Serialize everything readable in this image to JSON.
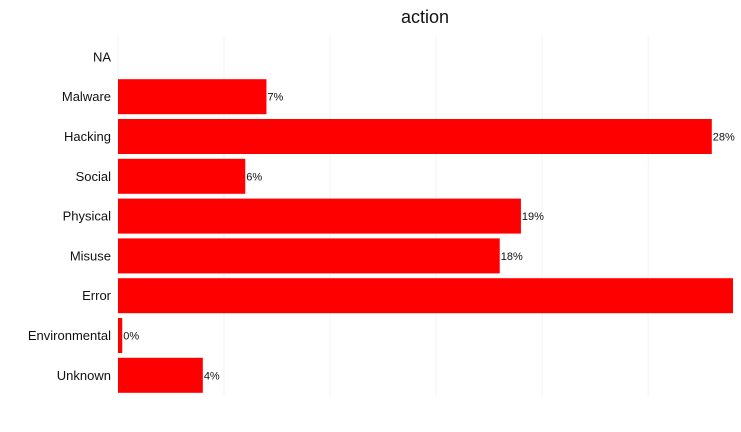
{
  "chart_data": {
    "type": "bar",
    "orientation": "horizontal",
    "title": "action",
    "xlabel": "",
    "ylabel": "",
    "categories": [
      "NA",
      "Malware",
      "Hacking",
      "Social",
      "Physical",
      "Misuse",
      "Error",
      "Environmental",
      "Unknown"
    ],
    "values": [
      null,
      7,
      28,
      6,
      19,
      18,
      29,
      0.2,
      4
    ],
    "labels": [
      "",
      "7%",
      "28%",
      "6%",
      "19%",
      "18%",
      "",
      "0%",
      "4%"
    ],
    "xlim": [
      0,
      29
    ],
    "grid": true,
    "bar_color": "#ff0000",
    "legend": "none"
  }
}
